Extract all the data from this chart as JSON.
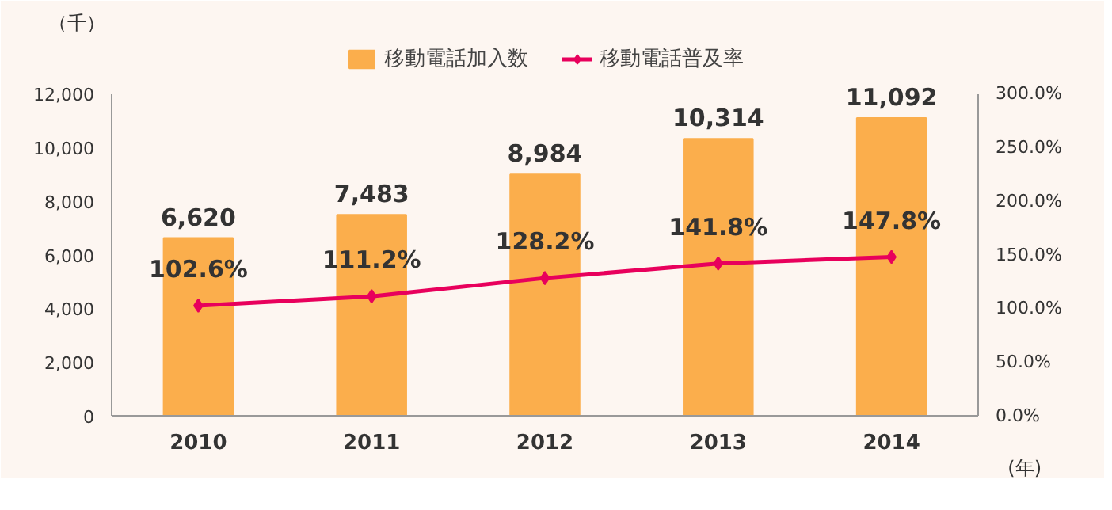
{
  "chart_data": {
    "type": "bar",
    "categories": [
      "2010",
      "2011",
      "2012",
      "2013",
      "2014"
    ],
    "series": [
      {
        "name": "移動電話加入数",
        "color": "#fbae4c",
        "values": [
          6620,
          7483,
          8984,
          10314,
          11092
        ],
        "value_labels": [
          "6,620",
          "7,483",
          "8,984",
          "10,314",
          "11,092"
        ]
      },
      {
        "name": "移動電話普及率",
        "type": "line",
        "axis": "y2",
        "color": "#e8005c",
        "marker": "diamond",
        "line_style": "solid",
        "values": [
          102.6,
          111.2,
          128.2,
          141.8,
          147.8
        ],
        "value_labels": [
          "102.6%",
          "111.2%",
          "128.2%",
          "141.8%",
          "147.8%"
        ]
      }
    ],
    "ylabel": "（千）",
    "xlabel": "(年)",
    "ylim": [
      0,
      12000
    ],
    "yticks": [
      0,
      {
        "value": 2000,
        "label": "2,000"
      },
      {
        "value": 4000,
        "label": "4,000"
      },
      {
        "value": 6000,
        "label": "6,000"
      },
      {
        "value": 8000,
        "label": "8,000"
      },
      {
        "value": 10000,
        "label": "10,000"
      },
      {
        "value": 12000,
        "label": "12,000"
      }
    ],
    "y2lim": [
      0,
      300
    ],
    "y2ticks": [
      {
        "value": 0,
        "label": "0.0%"
      },
      {
        "value": 50,
        "label": "50.0%"
      },
      {
        "value": 100,
        "label": "100.0%"
      },
      {
        "value": 150,
        "label": "150.0%"
      },
      {
        "value": 200,
        "label": "200.0%"
      },
      {
        "value": 250,
        "label": "250.0%"
      },
      {
        "value": 300,
        "label": "300.0%"
      }
    ],
    "legend": "top",
    "grid": false
  }
}
